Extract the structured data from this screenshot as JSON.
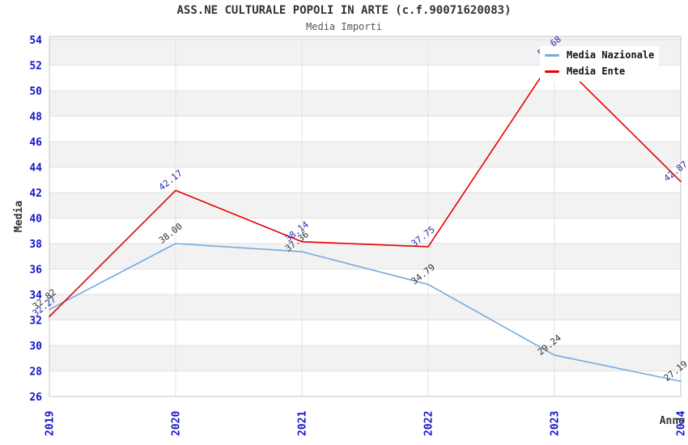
{
  "title": "ASS.NE CULTURALE POPOLI IN ARTE (c.f.90071620083)",
  "subtitle": "Media Importi",
  "legend": {
    "items": [
      {
        "label": "Media Nazionale",
        "color": "#74ABE2"
      },
      {
        "label": "Media Ente",
        "color": "#E60000"
      }
    ]
  },
  "chart_data": {
    "type": "line",
    "title": "ASS.NE CULTURALE POPOLI IN ARTE (c.f.90071620083)",
    "subtitle": "Media Importi",
    "x": [
      "2019",
      "2020",
      "2021",
      "2022",
      "2023",
      "2024"
    ],
    "series": [
      {
        "name": "Media Nazionale",
        "color": "#74ABE2",
        "label_color": "#333333",
        "values": [
          32.82,
          38.0,
          37.36,
          34.79,
          29.24,
          27.19
        ]
      },
      {
        "name": "Media Ente",
        "color": "#E60000",
        "label_color": "#2B2BB4",
        "values": [
          32.27,
          42.17,
          38.14,
          37.75,
          52.68,
          42.87
        ]
      }
    ],
    "xlabel": "Anno",
    "ylabel": "Media",
    "ylim": [
      26,
      54
    ],
    "ytick_step": 2,
    "grid": true,
    "legend_position": "top-right",
    "band_color": "#F2F2F2",
    "gridline_color": "#E1E1E1",
    "border_color": "#C8C8C8",
    "tick_color": "#1414CC"
  }
}
